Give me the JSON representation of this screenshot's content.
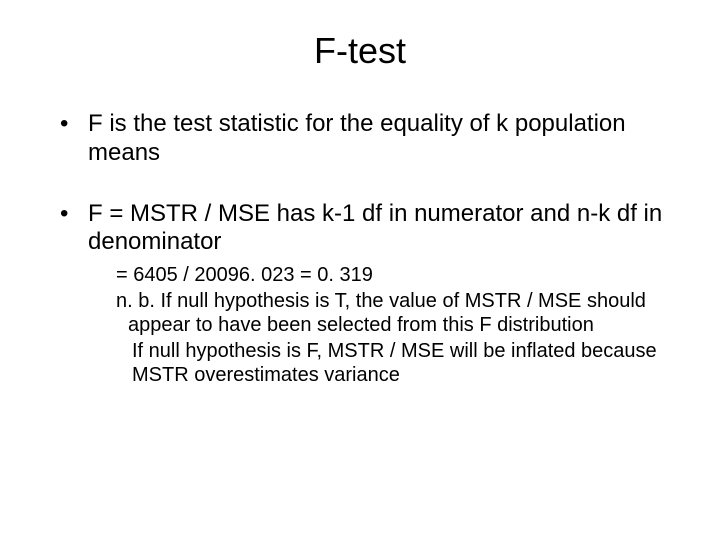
{
  "title": "F-test",
  "bullets": [
    {
      "text": "F is the test statistic for the equality of k population means"
    },
    {
      "text": "F = MSTR / MSE has k-1 df in numerator and n-k df in denominator",
      "subs": [
        "= 6405 / 20096. 023 = 0. 319",
        "n. b.  If null hypothesis is T, the value of MSTR / MSE should appear to have been selected from this F distribution",
        "  If null hypothesis is F, MSTR / MSE will be inflated because MSTR overestimates variance"
      ]
    }
  ],
  "colors": {
    "background": "#ffffff",
    "text": "#000000"
  },
  "fonts": {
    "title_size": 36,
    "bullet_size": 24,
    "sub_size": 20
  }
}
